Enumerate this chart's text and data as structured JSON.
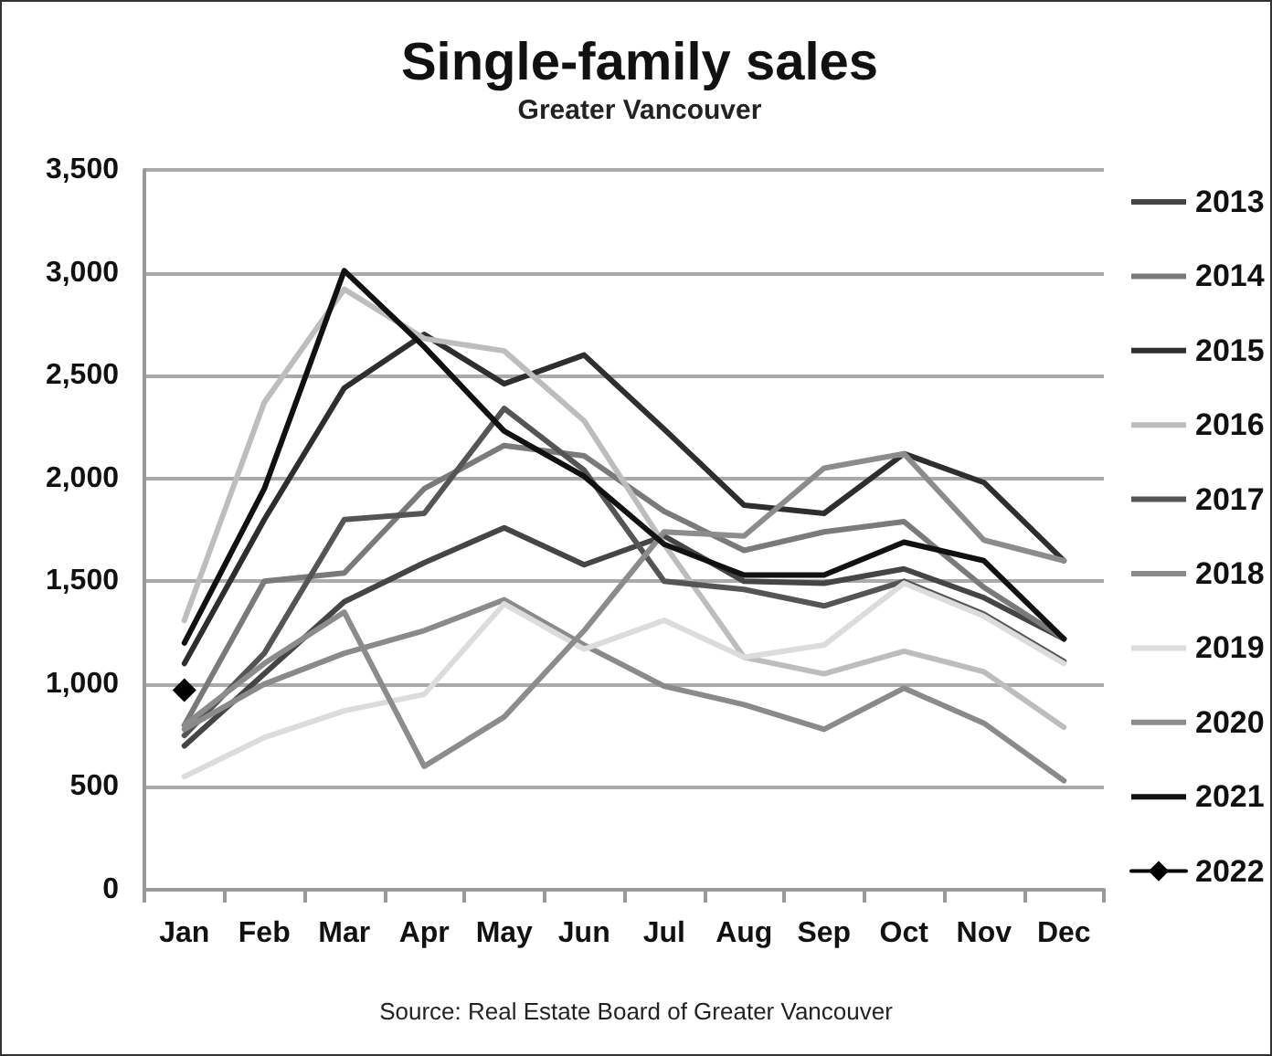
{
  "chart_data": {
    "type": "line",
    "title": "Single-family sales",
    "subtitle": "Greater Vancouver",
    "categories": [
      "Jan",
      "Feb",
      "Mar",
      "Apr",
      "May",
      "Jun",
      "Jul",
      "Aug",
      "Sep",
      "Oct",
      "Nov",
      "Dec"
    ],
    "series": [
      {
        "name": "2013",
        "color": "#454545",
        "values": [
          700,
          1050,
          1400,
          1590,
          1760,
          1580,
          1720,
          1500,
          1490,
          1560,
          1420,
          1220
        ]
      },
      {
        "name": "2014",
        "color": "#7a7a7a",
        "values": [
          800,
          1500,
          1540,
          1950,
          2160,
          2110,
          1840,
          1650,
          1740,
          1790,
          1470,
          1220
        ]
      },
      {
        "name": "2015",
        "color": "#2e2e2e",
        "values": [
          1100,
          1800,
          2440,
          2700,
          2460,
          2600,
          2240,
          1870,
          1830,
          2120,
          1980,
          1600
        ]
      },
      {
        "name": "2016",
        "color": "#bdbdbd",
        "values": [
          1310,
          2370,
          2920,
          2680,
          2620,
          2280,
          1680,
          1130,
          1050,
          1160,
          1060,
          790
        ]
      },
      {
        "name": "2017",
        "color": "#555555",
        "values": [
          750,
          1150,
          1800,
          1830,
          2340,
          2040,
          1500,
          1460,
          1380,
          1500,
          1340,
          1110
        ]
      },
      {
        "name": "2018",
        "color": "#8a8a8a",
        "values": [
          780,
          1000,
          1150,
          1260,
          1410,
          1190,
          990,
          900,
          780,
          980,
          810,
          530
        ]
      },
      {
        "name": "2019",
        "color": "#dcdcdc",
        "values": [
          550,
          740,
          870,
          950,
          1390,
          1170,
          1310,
          1130,
          1190,
          1490,
          1330,
          1100
        ]
      },
      {
        "name": "2020",
        "color": "#8c8c8c",
        "values": [
          800,
          1100,
          1350,
          600,
          840,
          1260,
          1740,
          1720,
          2050,
          2120,
          1700,
          1600
        ]
      },
      {
        "name": "2021",
        "color": "#111111",
        "values": [
          1200,
          1950,
          3010,
          2640,
          2230,
          2010,
          1680,
          1530,
          1530,
          1690,
          1600,
          1220
        ]
      },
      {
        "name": "2022",
        "color": "#000000",
        "marker": "diamond",
        "values": [
          970,
          null,
          null,
          null,
          null,
          null,
          null,
          null,
          null,
          null,
          null,
          null
        ]
      }
    ],
    "ylim": [
      0,
      3500
    ],
    "yticks": [
      0,
      500,
      {
        "value": 1000,
        "label": "1,000"
      },
      {
        "value": 1500,
        "label": "1,500"
      },
      {
        "value": 2000,
        "label": "2,000"
      },
      {
        "value": 2500,
        "label": "2,500"
      },
      {
        "value": 3000,
        "label": "3,000"
      },
      {
        "value": 3500,
        "label": "3,500"
      }
    ],
    "grid": "y",
    "legend": "right",
    "marker": "none",
    "line_style": "solid",
    "annotations": [
      "Source: Real Estate Board of Greater Vancouver"
    ]
  }
}
